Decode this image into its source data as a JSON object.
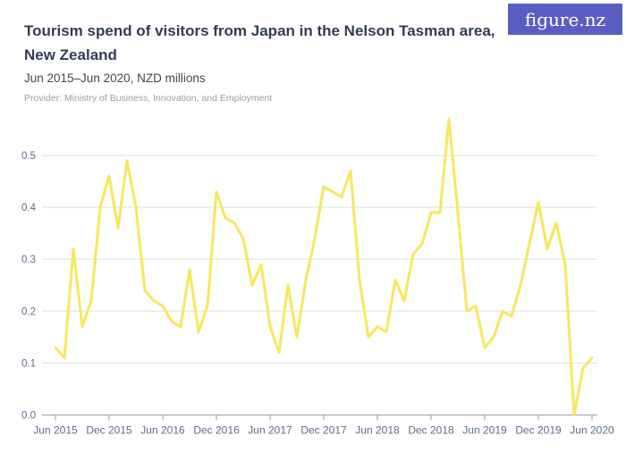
{
  "header": {
    "title": "Tourism spend of visitors from Japan in the Nelson Tasman area, New Zealand",
    "subtitle": "Jun 2015–Jun 2020, NZD millions",
    "provider": "Provider: Ministry of Business, Innovation, and Employment",
    "logo_text": "figure.nz"
  },
  "colors": {
    "title_text": "#323c52",
    "subtitle_text": "#45464b",
    "provider_text": "#9b9ca1",
    "logo_bg": "#5a5ec2",
    "logo_text": "#ffffff",
    "grid": "#e4e5e9",
    "axis_line": "#a8adb8",
    "axis_text": "#5b6b8e",
    "line": "#f7e75e"
  },
  "chart_data": {
    "type": "line",
    "title": "Tourism spend of visitors from Japan in the Nelson Tasman area, New Zealand",
    "unit": "NZD millions",
    "frequency": "monthly",
    "x_start": "2015-06",
    "x_end": "2020-06",
    "x_tick_labels": [
      "Jun 2015",
      "Dec 2015",
      "Jun 2016",
      "Dec 2016",
      "Jun 2017",
      "Dec 2017",
      "Jun 2018",
      "Dec 2018",
      "Jun 2019",
      "Dec 2019",
      "Jun 2020"
    ],
    "y_ticks": [
      0.0,
      0.1,
      0.2,
      0.3,
      0.4,
      0.5
    ],
    "ylim": [
      0,
      0.58
    ],
    "grid": true,
    "legend": false,
    "line_color": "#f7e75e",
    "values": [
      0.13,
      0.11,
      0.32,
      0.17,
      0.22,
      0.4,
      0.46,
      0.36,
      0.49,
      0.4,
      0.24,
      0.22,
      0.21,
      0.18,
      0.17,
      0.28,
      0.16,
      0.21,
      0.43,
      0.38,
      0.37,
      0.34,
      0.25,
      0.29,
      0.17,
      0.12,
      0.25,
      0.15,
      0.26,
      0.34,
      0.44,
      0.43,
      0.42,
      0.47,
      0.26,
      0.15,
      0.17,
      0.16,
      0.26,
      0.22,
      0.31,
      0.33,
      0.39,
      0.39,
      0.57,
      0.39,
      0.2,
      0.21,
      0.13,
      0.15,
      0.2,
      0.19,
      0.25,
      0.33,
      0.41,
      0.32,
      0.37,
      0.29,
      0.0,
      0.09,
      0.11
    ]
  }
}
